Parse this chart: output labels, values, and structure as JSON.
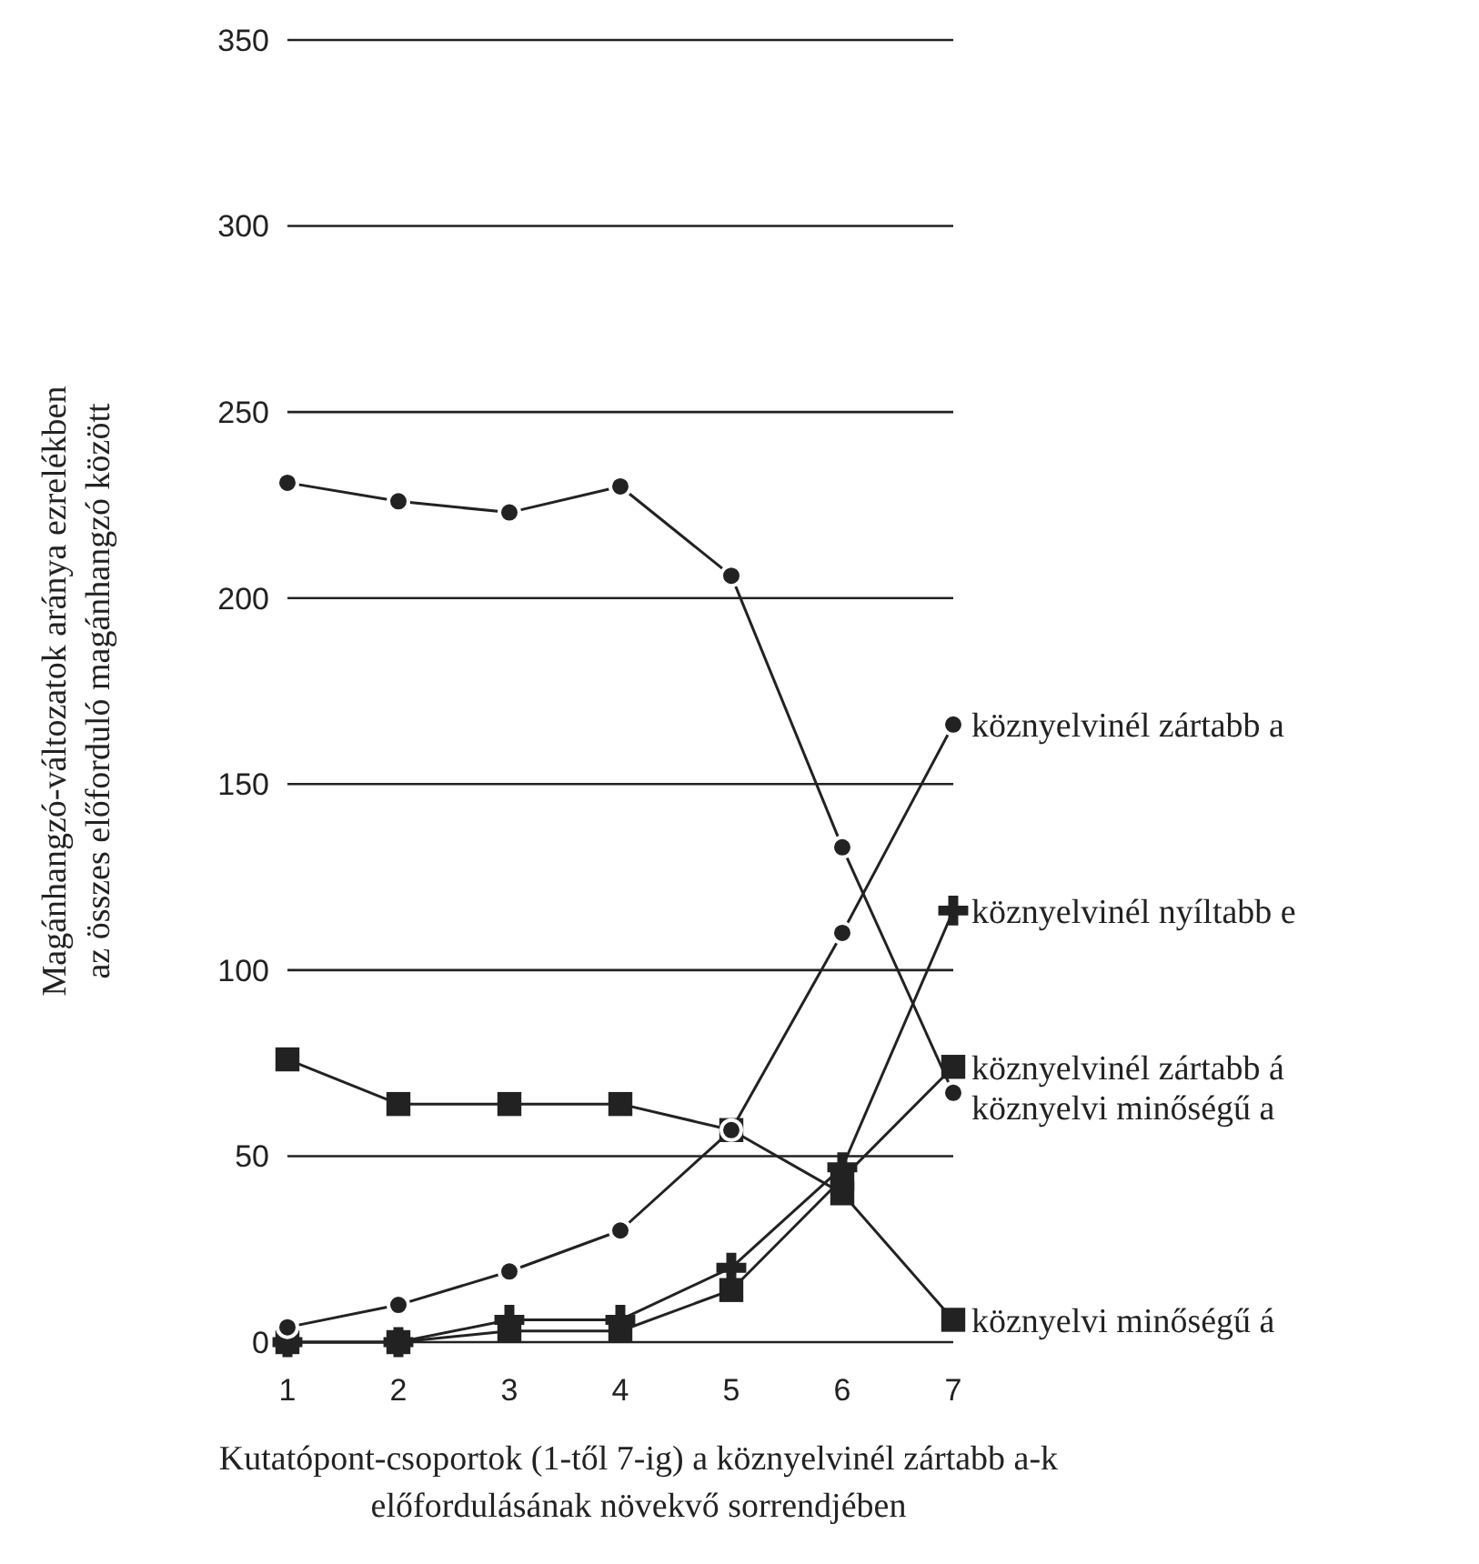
{
  "chart_data": {
    "type": "line",
    "xlabel": "Kutatópont-csoportok (1-től 7-ig) a köznyelvinél zártabb a-k előfordulásának növekvő sorrendjében",
    "ylabel": "Magánhangzó-változatok aránya ezrelékben az összes előforduló magánhangzó között",
    "x": [
      1,
      2,
      3,
      4,
      5,
      6,
      7
    ],
    "xlim": [
      1,
      7
    ],
    "xticks": [
      1,
      2,
      3,
      4,
      5,
      6,
      7
    ],
    "ylim": [
      0,
      350
    ],
    "yticks": [
      0,
      50,
      100,
      150,
      200,
      250,
      300,
      350
    ],
    "grid": "y",
    "line_style": "solid",
    "series": [
      {
        "name": "köznyelvinél zártabb a",
        "color": "#222222",
        "marker": "circle",
        "values": [
          4,
          10,
          19,
          30,
          57,
          110,
          166
        ]
      },
      {
        "name": "köznyelvinél nyíltabb e",
        "color": "#222222",
        "marker": "cross",
        "values": [
          0,
          0,
          6,
          6,
          20,
          47,
          116
        ]
      },
      {
        "name": "köznyelvinél zártabb á",
        "color": "#222222",
        "marker": "square",
        "values": [
          0,
          0,
          3,
          3,
          14,
          44,
          74
        ]
      },
      {
        "name": "köznyelvi minőségű a",
        "color": "#222222",
        "marker": "circle",
        "values": [
          231,
          226,
          223,
          230,
          206,
          133,
          67
        ]
      },
      {
        "name": "köznyelvi minőségű á",
        "color": "#222222",
        "marker": "square",
        "values": [
          76,
          64,
          64,
          64,
          57,
          40,
          6
        ]
      }
    ]
  }
}
